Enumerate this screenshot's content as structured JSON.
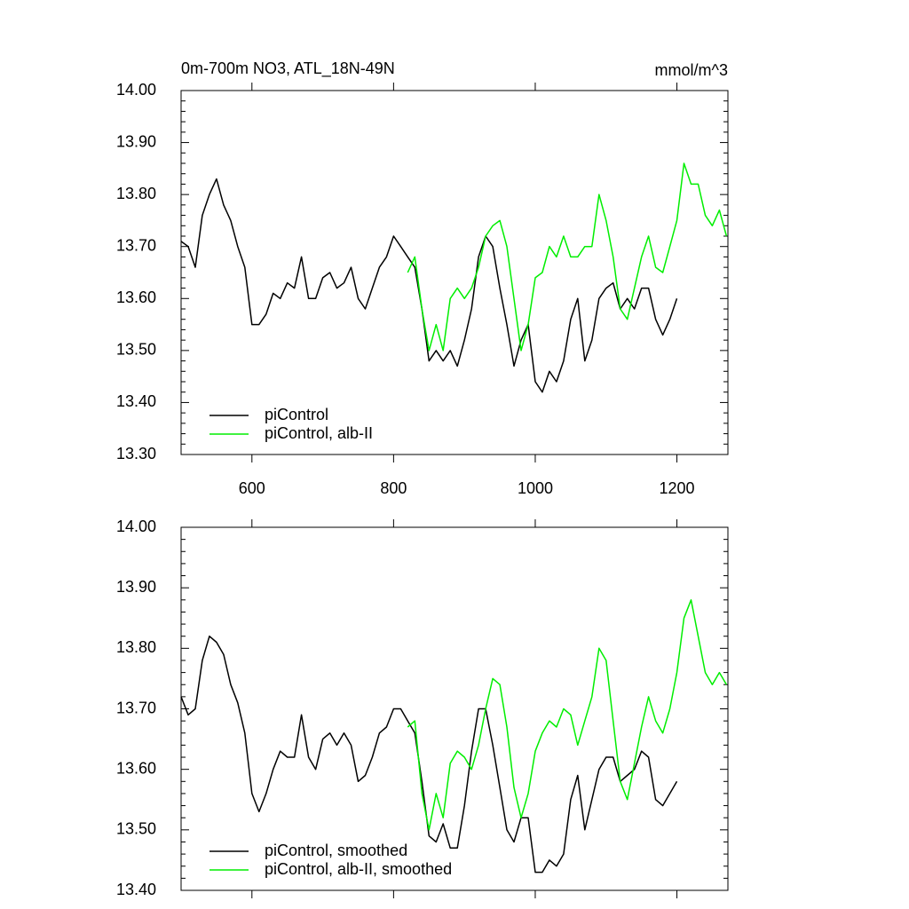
{
  "chart_data": [
    {
      "type": "line",
      "title": "0m-700m NO3, ATL_18N-49N",
      "units": "mmol/m^3",
      "xlim": [
        500,
        1272
      ],
      "xticks": [
        600,
        800,
        1000,
        1200
      ],
      "ylim": [
        13.3,
        14.0
      ],
      "yticks": [
        {
          "value": 13.3,
          "label": "13.30"
        },
        {
          "value": 13.4,
          "label": "13.40"
        },
        {
          "value": 13.5,
          "label": "13.50"
        },
        {
          "value": 13.6,
          "label": "13.60"
        },
        {
          "value": 13.7,
          "label": "13.70"
        },
        {
          "value": 13.8,
          "label": "13.80"
        },
        {
          "value": 13.9,
          "label": "13.90"
        },
        {
          "value": 14.0,
          "label": "14.00"
        }
      ],
      "legend": "lower left",
      "series": [
        {
          "name": "piControl",
          "color": "#000000",
          "x": [
            500,
            510,
            520,
            530,
            540,
            550,
            560,
            570,
            580,
            590,
            600,
            610,
            620,
            630,
            640,
            650,
            660,
            670,
            680,
            690,
            700,
            710,
            720,
            730,
            740,
            750,
            760,
            770,
            780,
            790,
            800,
            810,
            820,
            830,
            840,
            850,
            860,
            870,
            880,
            890,
            900,
            910,
            920,
            930,
            940,
            950,
            960,
            970,
            980,
            990,
            1000,
            1010,
            1020,
            1030,
            1040,
            1050,
            1060,
            1070,
            1080,
            1090,
            1100,
            1110,
            1120,
            1130,
            1140,
            1150,
            1160,
            1170,
            1180,
            1190,
            1200
          ],
          "values": [
            13.71,
            13.7,
            13.66,
            13.76,
            13.8,
            13.83,
            13.78,
            13.75,
            13.7,
            13.66,
            13.55,
            13.55,
            13.57,
            13.61,
            13.6,
            13.63,
            13.62,
            13.68,
            13.6,
            13.6,
            13.64,
            13.65,
            13.62,
            13.63,
            13.66,
            13.6,
            13.58,
            13.62,
            13.66,
            13.68,
            13.72,
            13.7,
            13.68,
            13.66,
            13.58,
            13.48,
            13.5,
            13.48,
            13.5,
            13.47,
            13.52,
            13.58,
            13.68,
            13.72,
            13.7,
            13.62,
            13.55,
            13.47,
            13.52,
            13.55,
            13.44,
            13.42,
            13.46,
            13.44,
            13.48,
            13.56,
            13.6,
            13.48,
            13.52,
            13.6,
            13.62,
            13.63,
            13.58,
            13.6,
            13.58,
            13.62,
            13.62,
            13.56,
            13.53,
            13.56,
            13.6
          ]
        },
        {
          "name": "piControl, alb-II",
          "color": "#00ee00",
          "x": [
            820,
            830,
            840,
            850,
            860,
            870,
            880,
            890,
            900,
            910,
            920,
            930,
            940,
            950,
            960,
            970,
            980,
            990,
            1000,
            1010,
            1020,
            1030,
            1040,
            1050,
            1060,
            1070,
            1080,
            1090,
            1100,
            1110,
            1120,
            1130,
            1140,
            1150,
            1160,
            1170,
            1180,
            1190,
            1200,
            1210,
            1220,
            1230,
            1240,
            1250,
            1260,
            1270
          ],
          "values": [
            13.65,
            13.68,
            13.58,
            13.5,
            13.55,
            13.5,
            13.6,
            13.62,
            13.6,
            13.62,
            13.66,
            13.72,
            13.74,
            13.75,
            13.7,
            13.6,
            13.5,
            13.55,
            13.64,
            13.65,
            13.7,
            13.68,
            13.72,
            13.68,
            13.68,
            13.7,
            13.7,
            13.8,
            13.75,
            13.68,
            13.58,
            13.56,
            13.62,
            13.68,
            13.72,
            13.66,
            13.65,
            13.7,
            13.75,
            13.86,
            13.82,
            13.82,
            13.76,
            13.74,
            13.77,
            13.72
          ]
        }
      ]
    },
    {
      "type": "line",
      "xlim": [
        500,
        1272
      ],
      "ylim": [
        13.4,
        14.0
      ],
      "yticks": [
        {
          "value": 13.4,
          "label": "13.40"
        },
        {
          "value": 13.5,
          "label": "13.50"
        },
        {
          "value": 13.6,
          "label": "13.60"
        },
        {
          "value": 13.7,
          "label": "13.70"
        },
        {
          "value": 13.8,
          "label": "13.80"
        },
        {
          "value": 13.9,
          "label": "13.90"
        },
        {
          "value": 14.0,
          "label": "14.00"
        }
      ],
      "legend": "lower left",
      "series": [
        {
          "name": "piControl, smoothed",
          "color": "#000000",
          "x": [
            500,
            510,
            520,
            530,
            540,
            550,
            560,
            570,
            580,
            590,
            600,
            610,
            620,
            630,
            640,
            650,
            660,
            670,
            680,
            690,
            700,
            710,
            720,
            730,
            740,
            750,
            760,
            770,
            780,
            790,
            800,
            810,
            820,
            830,
            840,
            850,
            860,
            870,
            880,
            890,
            900,
            910,
            920,
            930,
            940,
            950,
            960,
            970,
            980,
            990,
            1000,
            1010,
            1020,
            1030,
            1040,
            1050,
            1060,
            1070,
            1080,
            1090,
            1100,
            1110,
            1120,
            1130,
            1140,
            1150,
            1160,
            1170,
            1180,
            1190,
            1200
          ],
          "values": [
            13.72,
            13.69,
            13.7,
            13.78,
            13.82,
            13.81,
            13.79,
            13.74,
            13.71,
            13.66,
            13.56,
            13.53,
            13.56,
            13.6,
            13.63,
            13.62,
            13.62,
            13.69,
            13.62,
            13.6,
            13.65,
            13.66,
            13.64,
            13.66,
            13.64,
            13.58,
            13.59,
            13.62,
            13.66,
            13.67,
            13.7,
            13.7,
            13.68,
            13.66,
            13.58,
            13.49,
            13.48,
            13.51,
            13.47,
            13.47,
            13.54,
            13.63,
            13.7,
            13.7,
            13.64,
            13.57,
            13.5,
            13.48,
            13.52,
            13.52,
            13.43,
            13.43,
            13.45,
            13.44,
            13.46,
            13.55,
            13.59,
            13.5,
            13.55,
            13.6,
            13.62,
            13.62,
            13.58,
            13.59,
            13.6,
            13.63,
            13.62,
            13.55,
            13.54,
            13.56,
            13.58
          ]
        },
        {
          "name": "piControl, alb-II, smoothed",
          "color": "#00ee00",
          "x": [
            820,
            830,
            840,
            850,
            860,
            870,
            880,
            890,
            900,
            910,
            920,
            930,
            940,
            950,
            960,
            970,
            980,
            990,
            1000,
            1010,
            1020,
            1030,
            1040,
            1050,
            1060,
            1070,
            1080,
            1090,
            1100,
            1110,
            1120,
            1130,
            1140,
            1150,
            1160,
            1170,
            1180,
            1190,
            1200,
            1210,
            1220,
            1230,
            1240,
            1250,
            1260,
            1270
          ],
          "values": [
            13.67,
            13.68,
            13.56,
            13.5,
            13.56,
            13.52,
            13.61,
            13.63,
            13.62,
            13.6,
            13.64,
            13.7,
            13.75,
            13.74,
            13.67,
            13.57,
            13.52,
            13.56,
            13.63,
            13.66,
            13.68,
            13.67,
            13.7,
            13.69,
            13.64,
            13.68,
            13.72,
            13.8,
            13.78,
            13.68,
            13.58,
            13.55,
            13.61,
            13.67,
            13.72,
            13.68,
            13.66,
            13.7,
            13.76,
            13.85,
            13.88,
            13.82,
            13.76,
            13.74,
            13.76,
            13.74
          ]
        }
      ]
    }
  ]
}
